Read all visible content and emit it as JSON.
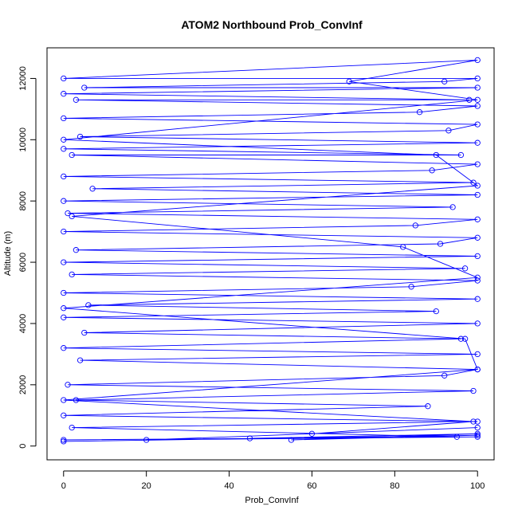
{
  "chart_data": {
    "type": "line",
    "title": "ATOM2 Northbound Prob_ConvInf",
    "xlabel": "Prob_ConvInf",
    "ylabel": "Altitude (m)",
    "xlim": [
      -4,
      104
    ],
    "ylim": [
      -450,
      13000
    ],
    "xticks": [
      0,
      20,
      40,
      60,
      80,
      100
    ],
    "yticks": [
      0,
      2000,
      4000,
      6000,
      8000,
      10000,
      12000
    ],
    "grid": false,
    "legend": "none",
    "series": [
      {
        "color": "#0000ff",
        "x": [
          0,
          95,
          2,
          100,
          0,
          88,
          3,
          99,
          1,
          92,
          100,
          4,
          100,
          0,
          96,
          5,
          100,
          0,
          90,
          6,
          100,
          0,
          84,
          100,
          2,
          97,
          0,
          100,
          3,
          91,
          100,
          0,
          85,
          100,
          1,
          94,
          0,
          100,
          7,
          99,
          0,
          89,
          100,
          2,
          96,
          0,
          100,
          4,
          93,
          100,
          0,
          86,
          100,
          3,
          98,
          0,
          100,
          5,
          92,
          100,
          0,
          100,
          69,
          100,
          0,
          90,
          100,
          2,
          82,
          100,
          0,
          97,
          100,
          0,
          99,
          60,
          100,
          20,
          100,
          45,
          100,
          55,
          100,
          0
        ],
        "y": [
          200,
          300,
          600,
          800,
          1000,
          1300,
          1500,
          1800,
          2000,
          2300,
          2500,
          2800,
          3000,
          3200,
          3500,
          3700,
          4000,
          4200,
          4400,
          4600,
          4800,
          5000,
          5200,
          5400,
          5600,
          5800,
          6000,
          6200,
          6400,
          6600,
          6800,
          7000,
          7200,
          7400,
          7600,
          7800,
          8000,
          8200,
          8400,
          8600,
          8800,
          9000,
          9200,
          9500,
          9500,
          9700,
          9900,
          10100,
          10300,
          10500,
          10700,
          10900,
          11100,
          11300,
          11300,
          11500,
          11700,
          11700,
          11900,
          12000,
          12000,
          12600,
          11900,
          11300,
          10000,
          9500,
          8500,
          7500,
          6500,
          5500,
          4500,
          3500,
          2500,
          1500,
          800,
          400,
          600,
          200,
          300,
          250,
          400,
          200,
          350,
          150
        ]
      }
    ]
  }
}
